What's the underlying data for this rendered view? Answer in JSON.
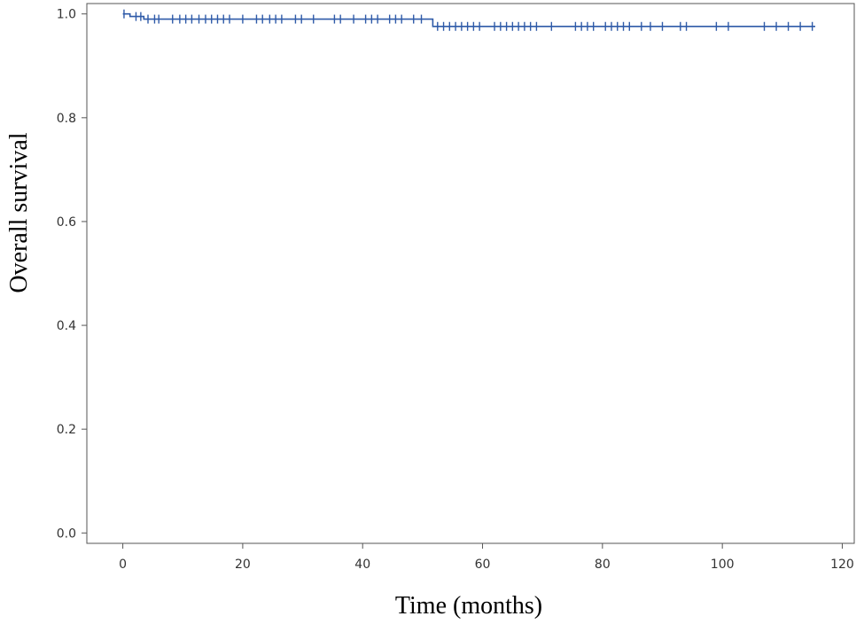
{
  "chart_data": {
    "type": "line",
    "title": "",
    "xlabel": "Time (months)",
    "ylabel": "Overall survival",
    "xlim": [
      -6,
      122
    ],
    "ylim": [
      -0.02,
      1.02
    ],
    "xticks": [
      0,
      20,
      40,
      60,
      80,
      100,
      120
    ],
    "yticks": [
      0.0,
      0.2,
      0.4,
      0.6,
      0.8,
      1.0
    ],
    "xtick_labels": [
      "0",
      "20",
      "40",
      "60",
      "80",
      "100",
      "120"
    ],
    "ytick_labels": [
      "0.0",
      "0.2",
      "0.4",
      "0.6",
      "0.8",
      "1.0"
    ],
    "grid": false,
    "legend": "none",
    "line_color": "#2e5aa8",
    "series": [
      {
        "curve": [
          {
            "x": 0,
            "y": 1.0
          },
          {
            "x": 1.2,
            "y": 1.0
          },
          {
            "x": 1.2,
            "y": 0.995
          },
          {
            "x": 3.5,
            "y": 0.995
          },
          {
            "x": 3.5,
            "y": 0.99
          },
          {
            "x": 51.7,
            "y": 0.99
          },
          {
            "x": 51.7,
            "y": 0.976
          },
          {
            "x": 115.5,
            "y": 0.976
          }
        ],
        "censored": [
          {
            "x": 0.2,
            "y": 1.0
          },
          {
            "x": 2.2,
            "y": 0.995
          },
          {
            "x": 3.0,
            "y": 0.995
          },
          {
            "x": 4.2,
            "y": 0.99
          },
          {
            "x": 5.3,
            "y": 0.99
          },
          {
            "x": 6.0,
            "y": 0.99
          },
          {
            "x": 8.3,
            "y": 0.99
          },
          {
            "x": 9.5,
            "y": 0.99
          },
          {
            "x": 10.5,
            "y": 0.99
          },
          {
            "x": 11.5,
            "y": 0.99
          },
          {
            "x": 12.7,
            "y": 0.99
          },
          {
            "x": 13.8,
            "y": 0.99
          },
          {
            "x": 14.8,
            "y": 0.99
          },
          {
            "x": 15.8,
            "y": 0.99
          },
          {
            "x": 16.8,
            "y": 0.99
          },
          {
            "x": 17.8,
            "y": 0.99
          },
          {
            "x": 20.0,
            "y": 0.99
          },
          {
            "x": 22.3,
            "y": 0.99
          },
          {
            "x": 23.3,
            "y": 0.99
          },
          {
            "x": 24.5,
            "y": 0.99
          },
          {
            "x": 25.5,
            "y": 0.99
          },
          {
            "x": 26.5,
            "y": 0.99
          },
          {
            "x": 28.8,
            "y": 0.99
          },
          {
            "x": 29.8,
            "y": 0.99
          },
          {
            "x": 31.8,
            "y": 0.99
          },
          {
            "x": 35.3,
            "y": 0.99
          },
          {
            "x": 36.3,
            "y": 0.99
          },
          {
            "x": 38.5,
            "y": 0.99
          },
          {
            "x": 40.5,
            "y": 0.99
          },
          {
            "x": 41.5,
            "y": 0.99
          },
          {
            "x": 42.5,
            "y": 0.99
          },
          {
            "x": 44.5,
            "y": 0.99
          },
          {
            "x": 45.5,
            "y": 0.99
          },
          {
            "x": 46.5,
            "y": 0.99
          },
          {
            "x": 48.5,
            "y": 0.99
          },
          {
            "x": 49.8,
            "y": 0.99
          },
          {
            "x": 52.5,
            "y": 0.976
          },
          {
            "x": 53.5,
            "y": 0.976
          },
          {
            "x": 54.5,
            "y": 0.976
          },
          {
            "x": 55.5,
            "y": 0.976
          },
          {
            "x": 56.5,
            "y": 0.976
          },
          {
            "x": 57.5,
            "y": 0.976
          },
          {
            "x": 58.5,
            "y": 0.976
          },
          {
            "x": 59.5,
            "y": 0.976
          },
          {
            "x": 62.0,
            "y": 0.976
          },
          {
            "x": 63.0,
            "y": 0.976
          },
          {
            "x": 64.0,
            "y": 0.976
          },
          {
            "x": 65.0,
            "y": 0.976
          },
          {
            "x": 66.0,
            "y": 0.976
          },
          {
            "x": 67.0,
            "y": 0.976
          },
          {
            "x": 68.0,
            "y": 0.976
          },
          {
            "x": 69.0,
            "y": 0.976
          },
          {
            "x": 71.5,
            "y": 0.976
          },
          {
            "x": 75.5,
            "y": 0.976
          },
          {
            "x": 76.5,
            "y": 0.976
          },
          {
            "x": 77.5,
            "y": 0.976
          },
          {
            "x": 78.5,
            "y": 0.976
          },
          {
            "x": 80.5,
            "y": 0.976
          },
          {
            "x": 81.5,
            "y": 0.976
          },
          {
            "x": 82.5,
            "y": 0.976
          },
          {
            "x": 83.5,
            "y": 0.976
          },
          {
            "x": 84.5,
            "y": 0.976
          },
          {
            "x": 86.5,
            "y": 0.976
          },
          {
            "x": 88.0,
            "y": 0.976
          },
          {
            "x": 90.0,
            "y": 0.976
          },
          {
            "x": 93.0,
            "y": 0.976
          },
          {
            "x": 94.0,
            "y": 0.976
          },
          {
            "x": 99.0,
            "y": 0.976
          },
          {
            "x": 101.0,
            "y": 0.976
          },
          {
            "x": 107.0,
            "y": 0.976
          },
          {
            "x": 109.0,
            "y": 0.976
          },
          {
            "x": 111.0,
            "y": 0.976
          },
          {
            "x": 113.0,
            "y": 0.976
          },
          {
            "x": 115.0,
            "y": 0.976
          }
        ]
      }
    ]
  }
}
